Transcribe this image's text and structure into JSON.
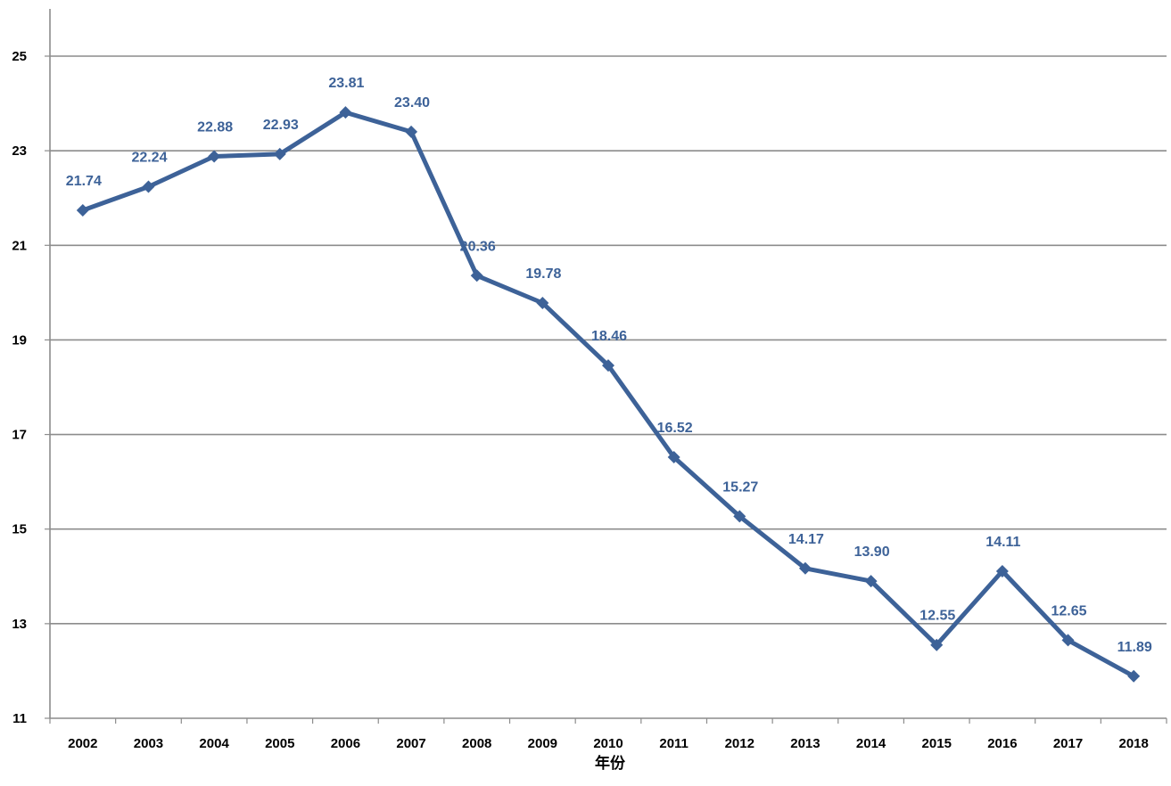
{
  "chart_data": {
    "type": "line",
    "title": "",
    "xlabel": "年份",
    "ylabel": "",
    "categories": [
      "2002",
      "2003",
      "2004",
      "2005",
      "2006",
      "2007",
      "2008",
      "2009",
      "2010",
      "2011",
      "2012",
      "2013",
      "2014",
      "2015",
      "2016",
      "2017",
      "2018"
    ],
    "series": [
      {
        "values": [
          21.74,
          22.24,
          22.88,
          22.93,
          23.81,
          23.4,
          20.36,
          19.78,
          18.46,
          16.52,
          15.27,
          14.17,
          13.9,
          12.55,
          14.11,
          12.65,
          11.89
        ],
        "labels": [
          "21.74",
          "22.24",
          "22.88",
          "22.93",
          "23.81",
          "23.40",
          "20.36",
          "19.78",
          "18.46",
          "16.52",
          "15.27",
          "14.17",
          "13.90",
          "12.55",
          "14.11",
          "12.65",
          "11.89"
        ],
        "color": "#3D6298",
        "marker": "diamond"
      }
    ],
    "ylim": [
      11,
      26
    ],
    "yticks": [
      "11",
      "13",
      "15",
      "17",
      "19",
      "21",
      "23",
      "25"
    ],
    "grid": true,
    "legend": "none",
    "gridColor": "#8C8C8C",
    "axisColor": "#8C8C8C",
    "labelColor": "#3D6298"
  }
}
